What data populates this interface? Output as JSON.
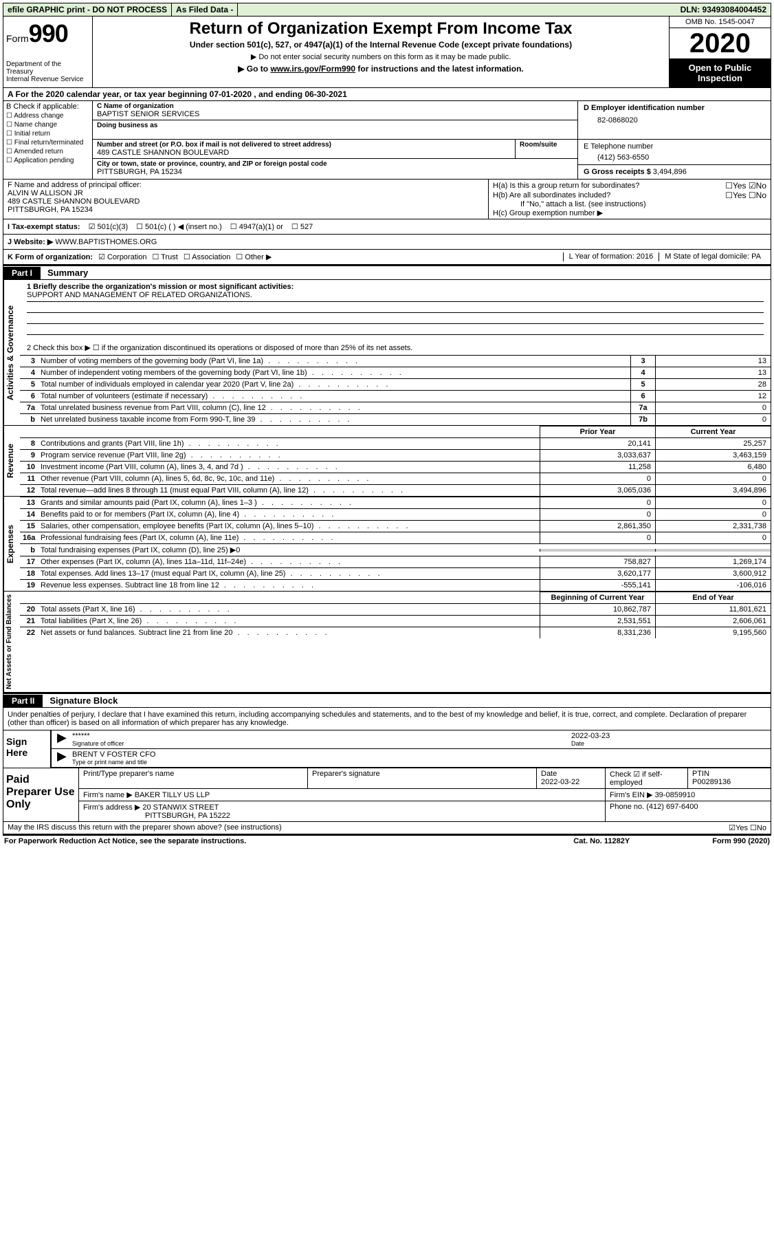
{
  "topbar": {
    "efile": "efile GRAPHIC print - DO NOT PROCESS",
    "asfiled": "As Filed Data -",
    "dln": "DLN: 93493084004452"
  },
  "header": {
    "form_label": "Form",
    "form_num": "990",
    "dept": "Department of the Treasury\nInternal Revenue Service",
    "title": "Return of Organization Exempt From Income Tax",
    "subtitle": "Under section 501(c), 527, or 4947(a)(1) of the Internal Revenue Code (except private foundations)",
    "caution": "▶ Do not enter social security numbers on this form as it may be made public.",
    "goto": "▶ Go to www.irs.gov/Form990 for instructions and the latest information.",
    "omb": "OMB No. 1545-0047",
    "year": "2020",
    "open": "Open to Public Inspection"
  },
  "row_a": "A  For the 2020 calendar year, or tax year beginning 07-01-2020   , and ending 06-30-2021",
  "b": {
    "hdr": "B Check if applicable:",
    "items": [
      "Address change",
      "Name change",
      "Initial return",
      "Final return/terminated",
      "Amended return",
      "Application pending"
    ]
  },
  "c": {
    "lbl": "C Name of organization",
    "name": "BAPTIST SENIOR SERVICES",
    "dba_lbl": "Doing business as",
    "addr_lbl": "Number and street (or P.O. box if mail is not delivered to street address)",
    "addr": "489 CASTLE SHANNON BOULEVARD",
    "room_lbl": "Room/suite",
    "city_lbl": "City or town, state or province, country, and ZIP or foreign postal code",
    "city": "PITTSBURGH, PA  15234"
  },
  "d": {
    "lbl": "D Employer identification number",
    "val": "82-0868020"
  },
  "e": {
    "lbl": "E Telephone number",
    "val": "(412) 563-6550"
  },
  "g": {
    "lbl": "G Gross receipts $",
    "val": "3,494,896"
  },
  "f": {
    "lbl": "F  Name and address of principal officer:",
    "name": "ALVIN W ALLISON JR",
    "addr1": "489 CASTLE SHANNON BOULEVARD",
    "addr2": "PITTSBURGH, PA  15234"
  },
  "h": {
    "a": "H(a)  Is this a group return for subordinates?",
    "a_yes": "☐Yes",
    "a_no": "☑No",
    "b": "H(b)  Are all subordinates included?",
    "b_yes": "☐Yes",
    "b_no": "☐No",
    "note": "If \"No,\" attach a list. (see instructions)",
    "c": "H(c)  Group exemption number ▶"
  },
  "i": {
    "lbl": "I  Tax-exempt status:",
    "o1": "☑  501(c)(3)",
    "o2": "☐   501(c) (  ) ◀ (insert no.)",
    "o3": "☐   4947(a)(1) or",
    "o4": "☐   527"
  },
  "j": {
    "lbl": "J  Website: ▶",
    "val": "WWW.BAPTISTHOMES.ORG"
  },
  "k": {
    "lbl": "K Form of organization:",
    "o1": "☑ Corporation",
    "o2": "☐ Trust",
    "o3": "☐ Association",
    "o4": "☐ Other ▶"
  },
  "l": "L Year of formation: 2016",
  "m": "M State of legal domicile: PA",
  "part1": {
    "tab": "Part I",
    "title": "Summary"
  },
  "mission": {
    "lbl": "1 Briefly describe the organization's mission or most significant activities:",
    "txt": "SUPPORT AND MANAGEMENT OF RELATED ORGANIZATIONS."
  },
  "line2": "2  Check this box ▶ ☐  if the organization discontinued its operations or disposed of more than 25% of its net assets.",
  "gov": [
    {
      "n": "3",
      "t": "Number of voting members of the governing body (Part VI, line 1a)",
      "c": "3",
      "v": "13"
    },
    {
      "n": "4",
      "t": "Number of independent voting members of the governing body (Part VI, line 1b)",
      "c": "4",
      "v": "13"
    },
    {
      "n": "5",
      "t": "Total number of individuals employed in calendar year 2020 (Part V, line 2a)",
      "c": "5",
      "v": "28"
    },
    {
      "n": "6",
      "t": "Total number of volunteers (estimate if necessary)",
      "c": "6",
      "v": "12"
    },
    {
      "n": "7a",
      "t": "Total unrelated business revenue from Part VIII, column (C), line 12",
      "c": "7a",
      "v": "0"
    },
    {
      "n": "b",
      "t": "Net unrelated business taxable income from Form 990-T, line 39",
      "c": "7b",
      "v": "0"
    }
  ],
  "rev_hdr": {
    "prior": "Prior Year",
    "curr": "Current Year"
  },
  "rev": [
    {
      "n": "8",
      "t": "Contributions and grants (Part VIII, line 1h)",
      "p": "20,141",
      "c": "25,257"
    },
    {
      "n": "9",
      "t": "Program service revenue (Part VIII, line 2g)",
      "p": "3,033,637",
      "c": "3,463,159"
    },
    {
      "n": "10",
      "t": "Investment income (Part VIII, column (A), lines 3, 4, and 7d )",
      "p": "11,258",
      "c": "6,480"
    },
    {
      "n": "11",
      "t": "Other revenue (Part VIII, column (A), lines 5, 6d, 8c, 9c, 10c, and 11e)",
      "p": "0",
      "c": "0"
    },
    {
      "n": "12",
      "t": "Total revenue—add lines 8 through 11 (must equal Part VIII, column (A), line 12)",
      "p": "3,065,036",
      "c": "3,494,896"
    }
  ],
  "exp": [
    {
      "n": "13",
      "t": "Grants and similar amounts paid (Part IX, column (A), lines 1–3 )",
      "p": "0",
      "c": "0"
    },
    {
      "n": "14",
      "t": "Benefits paid to or for members (Part IX, column (A), line 4)",
      "p": "0",
      "c": "0"
    },
    {
      "n": "15",
      "t": "Salaries, other compensation, employee benefits (Part IX, column (A), lines 5–10)",
      "p": "2,861,350",
      "c": "2,331,738"
    },
    {
      "n": "16a",
      "t": "Professional fundraising fees (Part IX, column (A), line 11e)",
      "p": "0",
      "c": "0"
    },
    {
      "n": "b",
      "t": "Total fundraising expenses (Part IX, column (D), line 25) ▶0",
      "p": "",
      "c": ""
    },
    {
      "n": "17",
      "t": "Other expenses (Part IX, column (A), lines 11a–11d, 11f–24e)",
      "p": "758,827",
      "c": "1,269,174"
    },
    {
      "n": "18",
      "t": "Total expenses. Add lines 13–17 (must equal Part IX, column (A), line 25)",
      "p": "3,620,177",
      "c": "3,600,912"
    },
    {
      "n": "19",
      "t": "Revenue less expenses. Subtract line 18 from line 12",
      "p": "-555,141",
      "c": "-106,016"
    }
  ],
  "net_hdr": {
    "beg": "Beginning of Current Year",
    "end": "End of Year"
  },
  "net": [
    {
      "n": "20",
      "t": "Total assets (Part X, line 16)",
      "p": "10,862,787",
      "c": "11,801,621"
    },
    {
      "n": "21",
      "t": "Total liabilities (Part X, line 26)",
      "p": "2,531,551",
      "c": "2,606,061"
    },
    {
      "n": "22",
      "t": "Net assets or fund balances. Subtract line 21 from line 20",
      "p": "8,331,236",
      "c": "9,195,560"
    }
  ],
  "part2": {
    "tab": "Part II",
    "title": "Signature Block"
  },
  "penalties": "Under penalties of perjury, I declare that I have examined this return, including accompanying schedules and statements, and to the best of my knowledge and belief, it is true, correct, and complete. Declaration of preparer (other than officer) is based on all information of which preparer has any knowledge.",
  "sign": {
    "lbl": "Sign Here",
    "stars": "******",
    "sig_lbl": "Signature of officer",
    "date": "2022-03-23",
    "date_lbl": "Date",
    "name": "BRENT V FOSTER CFO",
    "name_lbl": "Type or print name and title"
  },
  "prep": {
    "lbl": "Paid Preparer Use Only",
    "h1": "Print/Type preparer's name",
    "h2": "Preparer's signature",
    "h3": "Date",
    "date": "2022-03-22",
    "h4": "Check ☑ if self-employed",
    "h5": "PTIN",
    "ptin": "P00289136",
    "firm_lbl": "Firm's name   ▶",
    "firm": "BAKER TILLY US LLP",
    "ein_lbl": "Firm's EIN ▶",
    "ein": "39-0859910",
    "addr_lbl": "Firm's address ▶",
    "addr1": "20 STANWIX STREET",
    "addr2": "PITTSBURGH, PA  15222",
    "phone_lbl": "Phone no.",
    "phone": "(412) 697-6400"
  },
  "discuss": {
    "txt": "May the IRS discuss this return with the preparer shown above? (see instructions)",
    "yn": "☑Yes  ☐No"
  },
  "bottom": {
    "pra": "For Paperwork Reduction Act Notice, see the separate instructions.",
    "cat": "Cat. No. 11282Y",
    "form": "Form 990 (2020)"
  },
  "vert": {
    "gov": "Activities & Governance",
    "rev": "Revenue",
    "exp": "Expenses",
    "net": "Net Assets or Fund Balances"
  }
}
